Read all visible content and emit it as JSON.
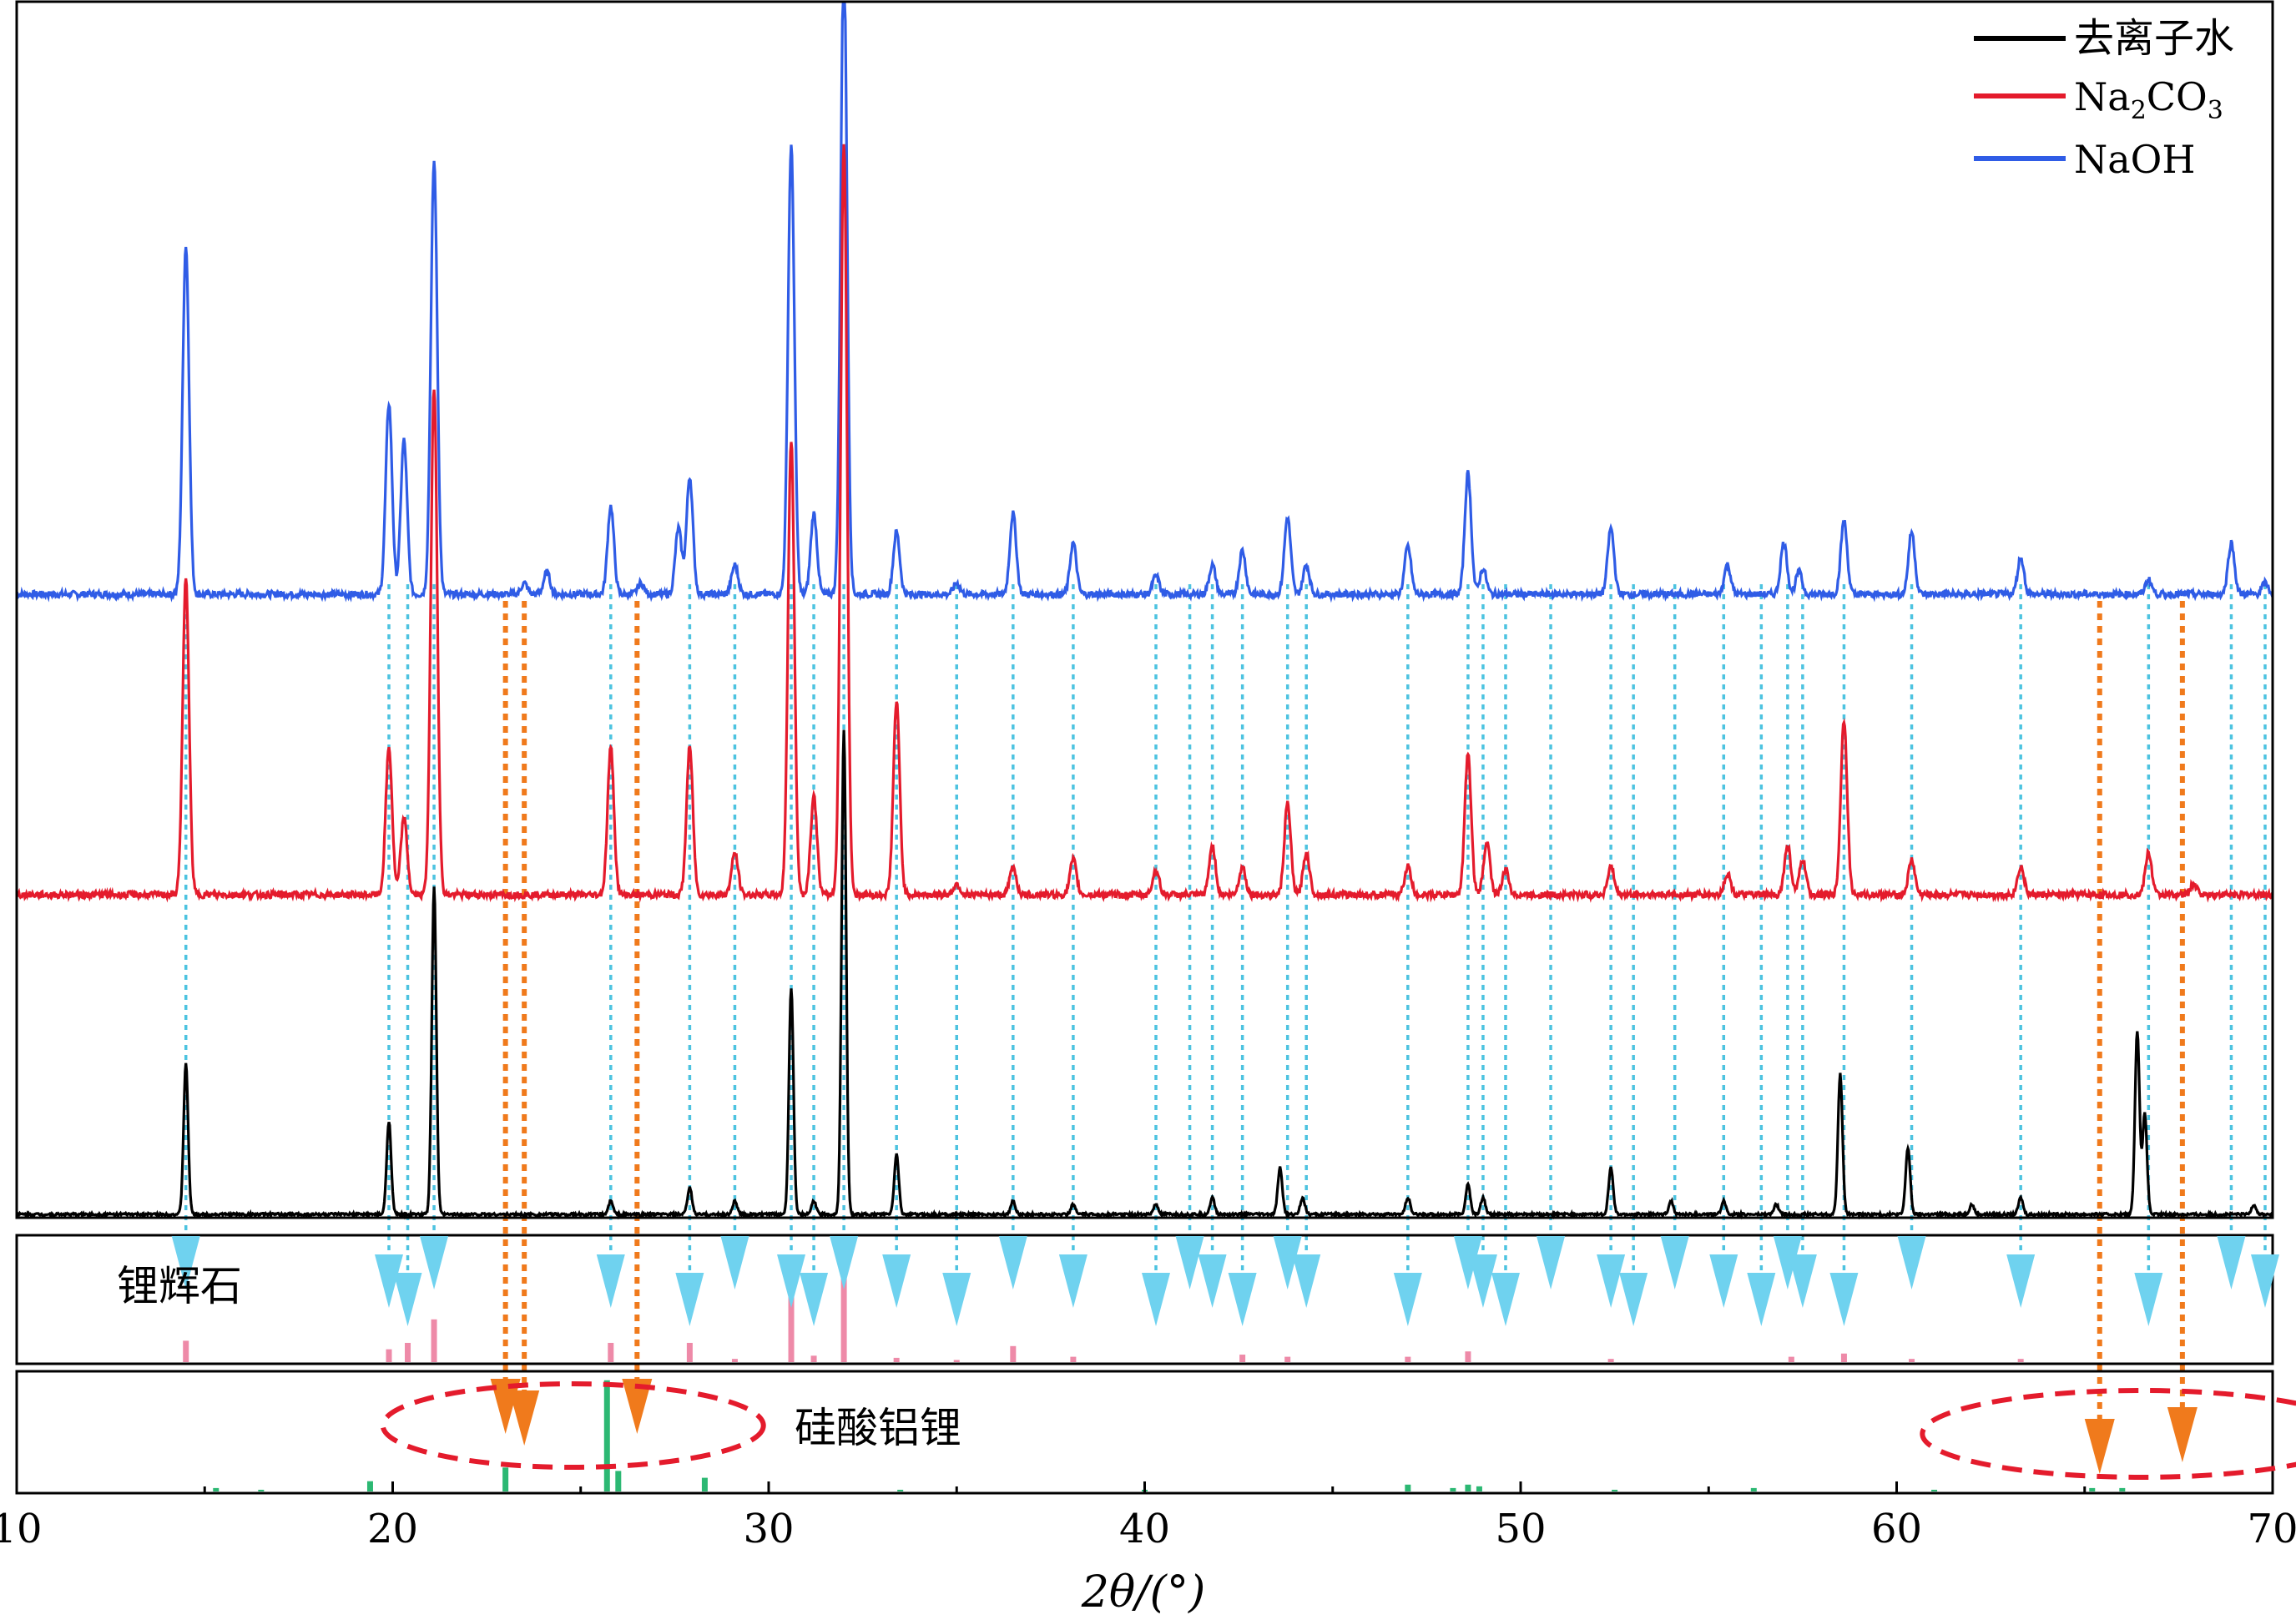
{
  "chart_data": {
    "type": "line",
    "title": "",
    "xlabel": "2θ/(°)",
    "ylabel": "",
    "xlim": [
      10,
      70
    ],
    "x_ticks": [
      "10",
      "20",
      "30",
      "40",
      "50",
      "60",
      "70"
    ],
    "legend_position": "top-right",
    "legend": [
      {
        "label": "去离子水",
        "color": "#000000"
      },
      {
        "label_main": "Na",
        "label_sub1": "2",
        "label_mid": "CO",
        "label_sub2": "3",
        "color": "#e41b2c"
      },
      {
        "label": "NaOH",
        "color": "#2f5ce6"
      }
    ],
    "series": [
      {
        "name": "NaOH",
        "color": "#2f5ce6",
        "peaks": [
          [
            14.5,
            95
          ],
          [
            19.9,
            52
          ],
          [
            20.3,
            42
          ],
          [
            21.1,
            118
          ],
          [
            23.5,
            3
          ],
          [
            24.1,
            6
          ],
          [
            25.8,
            24
          ],
          [
            26.6,
            3
          ],
          [
            27.6,
            18
          ],
          [
            27.9,
            32
          ],
          [
            29.1,
            8
          ],
          [
            30.6,
            122
          ],
          [
            31.2,
            22
          ],
          [
            32.0,
            175
          ],
          [
            33.4,
            17
          ],
          [
            35.0,
            3
          ],
          [
            36.5,
            22
          ],
          [
            38.1,
            14
          ],
          [
            40.3,
            5
          ],
          [
            41.8,
            8
          ],
          [
            42.6,
            12
          ],
          [
            43.8,
            21
          ],
          [
            44.3,
            8
          ],
          [
            47.0,
            13
          ],
          [
            48.6,
            33
          ],
          [
            49.0,
            7
          ],
          [
            52.4,
            18
          ],
          [
            55.5,
            8
          ],
          [
            57.0,
            14
          ],
          [
            57.4,
            6
          ],
          [
            58.6,
            20
          ],
          [
            60.4,
            17
          ],
          [
            63.3,
            10
          ],
          [
            66.7,
            4
          ],
          [
            68.9,
            14
          ],
          [
            69.8,
            3
          ]
        ]
      },
      {
        "name": "Na2CO3",
        "color": "#e41b2c",
        "peaks": [
          [
            14.5,
            90
          ],
          [
            19.9,
            42
          ],
          [
            20.3,
            22
          ],
          [
            21.1,
            145
          ],
          [
            25.8,
            42
          ],
          [
            27.9,
            42
          ],
          [
            29.1,
            12
          ],
          [
            30.6,
            130
          ],
          [
            31.2,
            28
          ],
          [
            32.0,
            215
          ],
          [
            33.4,
            55
          ],
          [
            35.0,
            3
          ],
          [
            36.5,
            8
          ],
          [
            38.1,
            10
          ],
          [
            40.3,
            7
          ],
          [
            41.8,
            14
          ],
          [
            42.6,
            8
          ],
          [
            43.8,
            26
          ],
          [
            44.3,
            12
          ],
          [
            47.0,
            8
          ],
          [
            48.6,
            40
          ],
          [
            49.1,
            15
          ],
          [
            49.6,
            7
          ],
          [
            52.4,
            8
          ],
          [
            55.5,
            6
          ],
          [
            57.1,
            14
          ],
          [
            57.5,
            10
          ],
          [
            58.6,
            50
          ],
          [
            60.4,
            10
          ],
          [
            63.3,
            8
          ],
          [
            66.7,
            12
          ],
          [
            67.9,
            3
          ]
        ]
      },
      {
        "name": "去离子水",
        "color": "#000000",
        "peaks": [
          [
            14.5,
            45
          ],
          [
            19.9,
            28
          ],
          [
            21.1,
            98
          ],
          [
            25.8,
            4
          ],
          [
            27.9,
            8
          ],
          [
            29.1,
            4
          ],
          [
            30.6,
            68
          ],
          [
            31.2,
            4
          ],
          [
            32.0,
            145
          ],
          [
            33.4,
            18
          ],
          [
            36.5,
            4
          ],
          [
            38.1,
            3
          ],
          [
            40.3,
            3
          ],
          [
            41.8,
            5
          ],
          [
            43.6,
            14
          ],
          [
            44.2,
            5
          ],
          [
            47.0,
            5
          ],
          [
            48.6,
            9
          ],
          [
            49.0,
            5
          ],
          [
            52.4,
            14
          ],
          [
            54.0,
            4
          ],
          [
            55.4,
            4
          ],
          [
            56.8,
            3
          ],
          [
            58.5,
            42
          ],
          [
            60.3,
            20
          ],
          [
            62.0,
            3
          ],
          [
            63.3,
            5
          ],
          [
            66.4,
            55
          ],
          [
            66.6,
            30
          ],
          [
            69.5,
            3
          ]
        ]
      }
    ],
    "reference_panels": [
      {
        "label": "锂辉石",
        "color": "#ee8aa8",
        "lines": [
          [
            14.5,
            20
          ],
          [
            19.9,
            12
          ],
          [
            20.4,
            18
          ],
          [
            21.1,
            40
          ],
          [
            25.8,
            18
          ],
          [
            27.9,
            18
          ],
          [
            29.1,
            3
          ],
          [
            30.6,
            90
          ],
          [
            31.2,
            6
          ],
          [
            32.0,
            85
          ],
          [
            33.4,
            4
          ],
          [
            35.0,
            2
          ],
          [
            36.5,
            15
          ],
          [
            38.1,
            5
          ],
          [
            42.6,
            7
          ],
          [
            43.8,
            5
          ],
          [
            47.0,
            5
          ],
          [
            48.6,
            10
          ],
          [
            52.4,
            3
          ],
          [
            57.2,
            5
          ],
          [
            58.6,
            8
          ],
          [
            60.4,
            3
          ],
          [
            63.3,
            3
          ]
        ],
        "markers": [
          14.5,
          19.9,
          20.4,
          21.1,
          25.8,
          27.9,
          29.1,
          30.6,
          31.2,
          32.0,
          33.4,
          35.0,
          36.5,
          38.1,
          40.3,
          41.2,
          41.8,
          42.6,
          43.8,
          44.3,
          47.0,
          48.6,
          49.0,
          49.6,
          50.8,
          52.4,
          53.0,
          54.1,
          55.4,
          56.4,
          57.1,
          57.5,
          58.6,
          60.4,
          63.3,
          66.7,
          68.9,
          69.8
        ]
      },
      {
        "label": "硅酸铝锂",
        "color": "#2cb873",
        "lines": [
          [
            15.3,
            2
          ],
          [
            16.5,
            1
          ],
          [
            19.4,
            6
          ],
          [
            23.0,
            14
          ],
          [
            25.7,
            65
          ],
          [
            26.0,
            12
          ],
          [
            28.3,
            8
          ],
          [
            33.5,
            1
          ],
          [
            40.0,
            1
          ],
          [
            47.0,
            4
          ],
          [
            48.2,
            2
          ],
          [
            48.6,
            4
          ],
          [
            48.9,
            3
          ],
          [
            52.5,
            1
          ],
          [
            56.2,
            2
          ],
          [
            61.0,
            1
          ],
          [
            65.2,
            2
          ],
          [
            66.0,
            2
          ]
        ],
        "markers": [
          23.0,
          23.5,
          26.5,
          65.4,
          67.6
        ]
      }
    ]
  }
}
